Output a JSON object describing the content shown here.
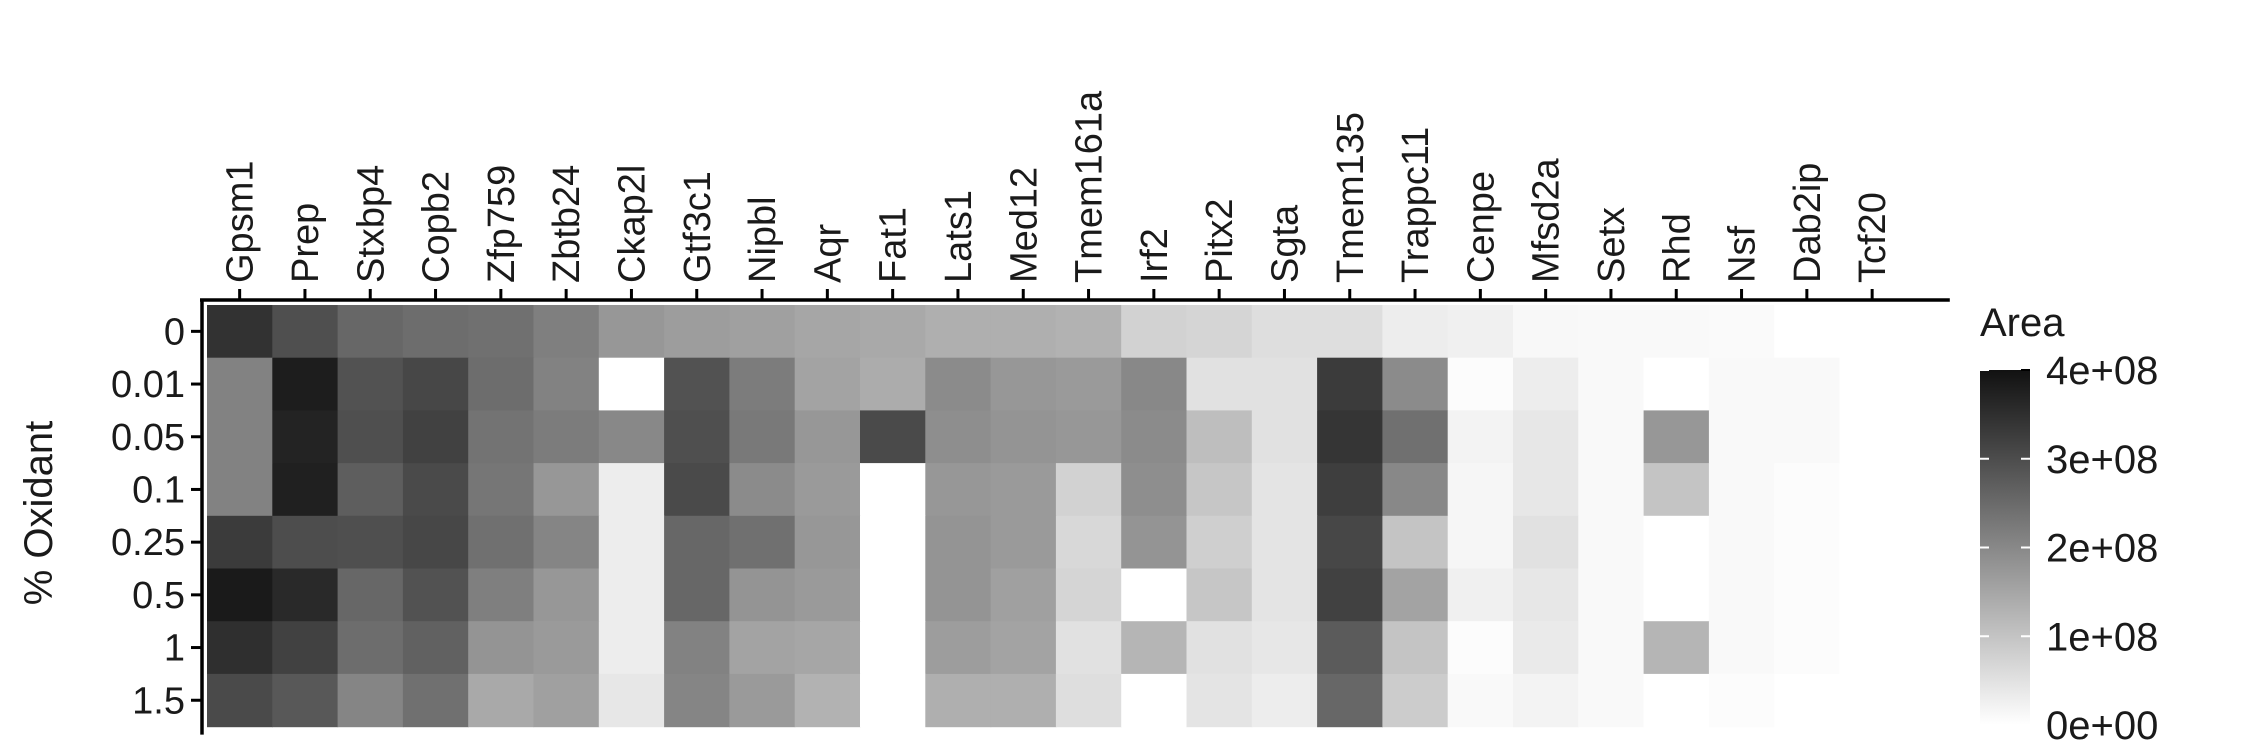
{
  "chart_data": {
    "type": "heatmap",
    "title": "",
    "xlabel": "",
    "ylabel": "% Oxidant",
    "x_axis_position": "top",
    "columns": [
      "Gpsm1",
      "Prep",
      "Stxbp4",
      "Copb2",
      "Zfp759",
      "Zbtb24",
      "Ckap2l",
      "Gtf3c1",
      "Nipbl",
      "Aqr",
      "Fat1",
      "Lats1",
      "Med12",
      "Tmem161a",
      "Irf2",
      "Pitx2",
      "Sgta",
      "Tmem135",
      "Trappc11",
      "Cenpe",
      "Mfsd2a",
      "Setx",
      "Rhd",
      "Nsf",
      "Dab2ip",
      "Tcf20"
    ],
    "rows": [
      "0",
      "0.01",
      "0.05",
      "0.1",
      "0.25",
      "0.5",
      "1",
      "1.5"
    ],
    "values_unit": "x1e8",
    "values": [
      [
        3.45,
        2.95,
        2.55,
        2.45,
        2.4,
        2.15,
        1.75,
        1.65,
        1.6,
        1.5,
        1.45,
        1.35,
        1.35,
        1.3,
        0.75,
        0.7,
        0.55,
        0.55,
        0.3,
        0.25,
        0.12,
        0.1,
        0.1,
        0.08,
        0.0,
        0.0
      ],
      [
        2.1,
        3.8,
        2.9,
        3.1,
        2.45,
        2.1,
        0.0,
        2.9,
        2.2,
        1.55,
        1.4,
        1.95,
        1.75,
        1.7,
        2.0,
        0.5,
        0.5,
        3.3,
        1.95,
        0.05,
        0.3,
        0.1,
        0.0,
        0.1,
        0.1,
        0.0
      ],
      [
        2.1,
        3.7,
        2.95,
        3.2,
        2.35,
        2.2,
        2.0,
        2.95,
        2.25,
        1.75,
        3.05,
        1.9,
        1.8,
        1.75,
        1.95,
        1.1,
        0.5,
        3.4,
        2.4,
        0.2,
        0.4,
        0.1,
        1.75,
        0.1,
        0.1,
        0.0
      ],
      [
        2.1,
        3.75,
        2.7,
        3.05,
        2.3,
        1.75,
        0.3,
        3.05,
        1.95,
        1.7,
        0.0,
        1.75,
        1.7,
        0.75,
        1.9,
        0.95,
        0.45,
        3.25,
        2.0,
        0.15,
        0.4,
        0.1,
        1.0,
        0.1,
        0.05,
        0.0
      ],
      [
        3.3,
        3.0,
        2.95,
        3.1,
        2.4,
        2.05,
        0.3,
        2.55,
        2.4,
        1.75,
        0.0,
        1.8,
        1.7,
        0.65,
        1.8,
        0.8,
        0.45,
        3.1,
        1.0,
        0.15,
        0.5,
        0.1,
        0.0,
        0.1,
        0.05,
        0.0
      ],
      [
        3.85,
        3.6,
        2.55,
        2.9,
        2.15,
        1.75,
        0.3,
        2.55,
        1.8,
        1.7,
        0.0,
        1.8,
        1.6,
        0.7,
        0.0,
        0.95,
        0.45,
        3.2,
        1.55,
        0.25,
        0.4,
        0.1,
        0.0,
        0.1,
        0.05,
        0.0
      ],
      [
        3.5,
        3.2,
        2.45,
        2.65,
        1.8,
        1.7,
        0.3,
        2.1,
        1.55,
        1.5,
        0.0,
        1.65,
        1.55,
        0.5,
        1.25,
        0.5,
        0.4,
        2.75,
        1.0,
        0.05,
        0.35,
        0.1,
        1.25,
        0.1,
        0.05,
        0.0
      ],
      [
        3.05,
        2.8,
        2.05,
        2.4,
        1.45,
        1.6,
        0.4,
        2.05,
        1.7,
        1.3,
        0.0,
        1.35,
        1.35,
        0.55,
        0.0,
        0.45,
        0.3,
        2.55,
        0.85,
        0.1,
        0.2,
        0.1,
        0.0,
        0.05,
        0.0,
        0.0
      ]
    ],
    "color_scale": {
      "title": "Area",
      "low_color": "#ffffff",
      "high_color": "#111111",
      "min": 0,
      "max": 4,
      "tick_values": [
        0,
        1,
        2,
        3,
        4
      ],
      "tick_labels": [
        "0e+00",
        "1e+08",
        "2e+08",
        "3e+08",
        "4e+08"
      ]
    },
    "legend_position": "right",
    "grid": false
  }
}
